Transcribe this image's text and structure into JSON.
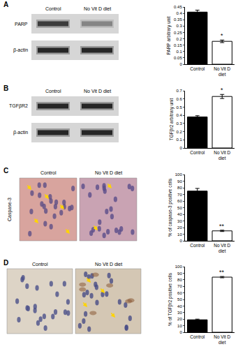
{
  "chart_data": [
    {
      "type": "bar",
      "categories": [
        "Control",
        "No Vit D diet"
      ],
      "values": [
        0.41,
        0.18
      ],
      "errors": [
        0.015,
        0.01
      ],
      "colors": [
        "#000000",
        "#ffffff"
      ],
      "ylabel": "PARP arbitrary unit",
      "ylim": [
        0,
        0.45
      ],
      "yticks": [
        0,
        0.05,
        0.1,
        0.15,
        0.2,
        0.25,
        0.3,
        0.35,
        0.4,
        0.45
      ],
      "grid": false,
      "annotations": [
        {
          "category": "No Vit D diet",
          "text": "*"
        }
      ]
    },
    {
      "type": "bar",
      "categories": [
        "Control",
        "No Vit D diet"
      ],
      "values": [
        0.38,
        0.63
      ],
      "errors": [
        0.015,
        0.025
      ],
      "colors": [
        "#000000",
        "#ffffff"
      ],
      "ylabel": "TGFβr2 arbitrary unit",
      "ylim": [
        0,
        0.7
      ],
      "yticks": [
        0,
        0.1,
        0.2,
        0.3,
        0.4,
        0.5,
        0.6,
        0.7
      ],
      "grid": false,
      "annotations": [
        {
          "category": "No Vit D diet",
          "text": "*"
        }
      ]
    },
    {
      "type": "bar",
      "categories": [
        "Control",
        "No Vit D diet"
      ],
      "values": [
        75,
        15
      ],
      "errors": [
        4,
        1
      ],
      "colors": [
        "#000000",
        "#ffffff"
      ],
      "ylabel": "% of caspase-3 positive cells",
      "ylim": [
        0,
        100
      ],
      "yticks": [
        0,
        10,
        20,
        30,
        40,
        50,
        60,
        70,
        80,
        90,
        100
      ],
      "grid": false,
      "annotations": [
        {
          "category": "No Vit D diet",
          "text": "**"
        }
      ]
    },
    {
      "type": "bar",
      "categories": [
        "Control",
        "No Vit D diet"
      ],
      "values": [
        19,
        84
      ],
      "errors": [
        1,
        1
      ],
      "colors": [
        "#000000",
        "#ffffff"
      ],
      "ylabel": "% of TGFβr2 positive cells",
      "ylim": [
        0,
        100
      ],
      "yticks": [
        0,
        10,
        20,
        30,
        40,
        50,
        60,
        70,
        80,
        90,
        100
      ],
      "grid": false,
      "annotations": [
        {
          "category": "No Vit D diet",
          "text": "**"
        }
      ]
    }
  ],
  "panels": [
    {
      "label": "A",
      "type": "blot",
      "columns": [
        "Control",
        "No Vit D diet"
      ],
      "rows": [
        "PARP",
        "β-actin"
      ]
    },
    {
      "label": "B",
      "type": "blot",
      "columns": [
        "Control",
        "No Vit D diet"
      ],
      "rows": [
        "TGFβR2",
        "β-actin"
      ]
    },
    {
      "label": "C",
      "type": "micrograph",
      "row_label": "Caspase-3",
      "columns": [
        "Control",
        "No Vit D diet"
      ]
    },
    {
      "label": "D",
      "type": "micrograph",
      "columns": [
        "Control",
        "No Vit D diet"
      ]
    }
  ]
}
